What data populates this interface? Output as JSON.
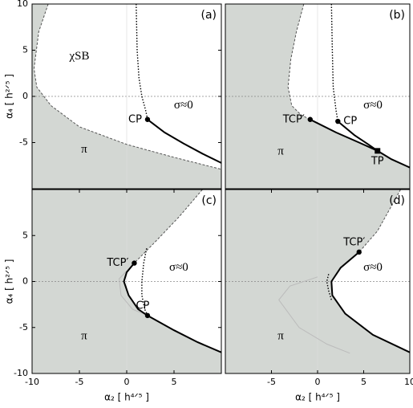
{
  "chart_data": [
    {
      "type": "line",
      "panel_label": "(a)",
      "ylabel": "α₄  [ h²ᐟ⁵ ]",
      "xlim": [
        -10,
        10
      ],
      "ylim": [
        -10,
        10
      ],
      "yticks": [
        -5,
        0,
        5,
        10
      ],
      "background": "#d3d7d3",
      "zero_lines": true,
      "region": {
        "color": "#ffffff",
        "x": [
          -8.3,
          -9.3,
          -9.8,
          -9.5,
          -8,
          -5,
          0,
          5,
          10,
          10
        ],
        "values": [
          10,
          7,
          3,
          1,
          -1,
          -3.3,
          -5.2,
          -6.6,
          -7.9,
          10
        ]
      },
      "series": [
        {
          "style": "dashed",
          "color": "#555555",
          "x": [
            -8.3,
            -9.3,
            -9.8,
            -9.5,
            -8,
            -5,
            0,
            5,
            10
          ],
          "values": [
            10,
            7,
            3,
            1,
            -1,
            -3.3,
            -5.2,
            -6.6,
            -7.9
          ]
        },
        {
          "style": "solid",
          "color": "#000000",
          "x": [
            2.2,
            4,
            6,
            8,
            10
          ],
          "values": [
            -2.5,
            -3.9,
            -5.1,
            -6.2,
            -7.2
          ]
        },
        {
          "style": "dotted",
          "color": "#000000",
          "x": [
            1.0,
            1.1,
            1.3,
            1.6,
            2.0,
            2.2
          ],
          "values": [
            10,
            5,
            2,
            0,
            -1.5,
            -2.5
          ]
        }
      ],
      "points": [
        {
          "label": "CP",
          "x": 2.2,
          "y": -2.5,
          "marker": "circle",
          "label_position": "left"
        }
      ],
      "annotations": [
        {
          "text": "χSB",
          "x": -5,
          "y": 4.3
        },
        {
          "text": "σ≈0",
          "x": 6,
          "y": -1
        },
        {
          "text": "π",
          "x": -4.5,
          "y": -5.8
        }
      ]
    },
    {
      "type": "line",
      "panel_label": "(b)",
      "xlim": [
        -10,
        10
      ],
      "ylim": [
        -10,
        10
      ],
      "background": "#d3d7d3",
      "zero_lines": true,
      "region": {
        "color": "#ffffff",
        "x": [
          -1.5,
          -2.3,
          -2.9,
          -3.2,
          -2.8,
          -1.8,
          -0.8,
          2,
          4.5,
          6.5,
          8,
          10,
          10
        ],
        "values": [
          10,
          7,
          4,
          1,
          -1,
          -2,
          -2.5,
          -3.9,
          -5,
          -5.9,
          -6.8,
          -7.7,
          10
        ]
      },
      "series": [
        {
          "style": "dashed",
          "color": "#555555",
          "x": [
            -1.5,
            -2.3,
            -2.9,
            -3.2,
            -2.8,
            -1.8,
            -0.8
          ],
          "values": [
            10,
            7,
            4,
            1,
            -1,
            -2,
            -2.5
          ]
        },
        {
          "style": "solid",
          "color": "#000000",
          "x": [
            -0.8,
            2,
            4.5,
            6.5,
            8,
            10
          ],
          "values": [
            -2.5,
            -3.9,
            -5,
            -5.9,
            -6.8,
            -7.7
          ]
        },
        {
          "style": "solid",
          "color": "#000000",
          "x": [
            2.2,
            4,
            5.5,
            6.5
          ],
          "values": [
            -2.7,
            -4.2,
            -5.2,
            -5.9
          ]
        },
        {
          "style": "dotted",
          "color": "#000000",
          "x": [
            1.5,
            1.6,
            1.7,
            2.0,
            2.2
          ],
          "values": [
            10,
            5,
            1,
            -1.5,
            -2.7
          ]
        }
      ],
      "points": [
        {
          "label": "TCP′",
          "x": -0.8,
          "y": -2.5,
          "marker": "circle",
          "label_position": "left"
        },
        {
          "label": "CP",
          "x": 2.2,
          "y": -2.7,
          "marker": "circle",
          "label_position": "right"
        },
        {
          "label": "TP",
          "x": 6.5,
          "y": -5.9,
          "marker": "square",
          "label_position": "below"
        }
      ],
      "annotations": [
        {
          "text": "σ≈0",
          "x": 6,
          "y": -1
        },
        {
          "text": "π",
          "x": -4,
          "y": -6
        }
      ]
    },
    {
      "type": "line",
      "panel_label": "(c)",
      "xlabel": "α₂  [ h⁴ᐟ⁵ ]",
      "ylabel": "α₄  [ h²ᐟ⁵ ]",
      "xlim": [
        -10,
        10
      ],
      "ylim": [
        -10,
        10
      ],
      "xticks": [
        -10,
        -5,
        0,
        5
      ],
      "yticks": [
        -10,
        -5,
        0,
        5
      ],
      "background": "#d3d7d3",
      "zero_lines": true,
      "region": {
        "color": "#ffffff",
        "x": [
          8,
          5.5,
          3,
          0.8,
          0,
          -0.3,
          0.2,
          1.2,
          2.2,
          5,
          7.5,
          10,
          10
        ],
        "values": [
          10,
          7,
          4.3,
          2,
          1,
          0,
          -1.5,
          -3,
          -3.7,
          -5.3,
          -6.6,
          -7.7,
          10
        ]
      },
      "series": [
        {
          "style": "faint",
          "color": "#bbbbbb",
          "x": [
            0.8,
            -0.8,
            -0.6,
            0.6,
            2.2
          ],
          "values": [
            2,
            0.3,
            -1.5,
            -3,
            -3.7
          ]
        },
        {
          "style": "dashed",
          "color": "#555555",
          "x": [
            8,
            5.5,
            3,
            0.8
          ],
          "values": [
            10,
            7,
            4.3,
            2
          ]
        },
        {
          "style": "solid",
          "color": "#000000",
          "x": [
            0.8,
            0,
            -0.3,
            0.2,
            1.2,
            2.2,
            5,
            7.5,
            10
          ],
          "values": [
            2,
            1,
            0,
            -1.5,
            -3,
            -3.7,
            -5.3,
            -6.6,
            -7.7
          ]
        },
        {
          "style": "dotted",
          "color": "#000000",
          "x": [
            2.1,
            1.8,
            1.6,
            1.6,
            1.9,
            2.2
          ],
          "values": [
            3.6,
            2,
            0,
            -1.5,
            -3,
            -3.7
          ]
        }
      ],
      "points": [
        {
          "label": "TCP′",
          "x": 0.8,
          "y": 2,
          "marker": "circle",
          "label_position": "left"
        },
        {
          "label": "CP",
          "x": 2.2,
          "y": -3.7,
          "marker": "circle",
          "label_position": "above"
        }
      ],
      "annotations": [
        {
          "text": "σ≈0",
          "x": 5.5,
          "y": 1.5
        },
        {
          "text": "π",
          "x": -4.5,
          "y": -6
        }
      ]
    },
    {
      "type": "line",
      "panel_label": "(d)",
      "xlabel": "α₂  [ h⁴ᐟ⁵ ]",
      "xlim": [
        -10,
        10
      ],
      "ylim": [
        -10,
        10
      ],
      "xticks": [
        -5,
        0,
        5,
        10
      ],
      "background": "#d3d7d3",
      "zero_lines": true,
      "region": {
        "color": "#ffffff",
        "x": [
          9,
          6.5,
          4.5,
          2.5,
          1.5,
          1.6,
          3,
          6,
          10,
          10
        ],
        "values": [
          10,
          5.5,
          3.2,
          1.5,
          0,
          -1.5,
          -3.5,
          -5.8,
          -7.7,
          10
        ]
      },
      "series": [
        {
          "style": "faint",
          "color": "#bbbbbb",
          "x": [
            0,
            -3,
            -4.2,
            -2,
            1,
            3.5
          ],
          "values": [
            0.5,
            -0.5,
            -2,
            -5,
            -6.8,
            -7.8
          ]
        },
        {
          "style": "dashed",
          "color": "#555555",
          "x": [
            9,
            6.5,
            4.5
          ],
          "values": [
            10,
            5.5,
            3.2
          ]
        },
        {
          "style": "solid",
          "color": "#000000",
          "x": [
            4.5,
            2.5,
            1.5,
            1.6,
            3,
            6,
            10
          ],
          "values": [
            3.2,
            1.5,
            0,
            -1.5,
            -3.5,
            -5.8,
            -7.7
          ]
        },
        {
          "style": "dotted",
          "color": "#000000",
          "x": [
            1.2,
            1.0,
            1.2,
            1.5
          ],
          "values": [
            0.8,
            0,
            -1,
            -2
          ]
        }
      ],
      "points": [
        {
          "label": "TCP′",
          "x": 4.5,
          "y": 3.2,
          "marker": "circle",
          "label_position": "above"
        }
      ],
      "annotations": [
        {
          "text": "σ≈0",
          "x": 6,
          "y": 1.5
        },
        {
          "text": "π",
          "x": -4,
          "y": -6
        }
      ]
    }
  ]
}
